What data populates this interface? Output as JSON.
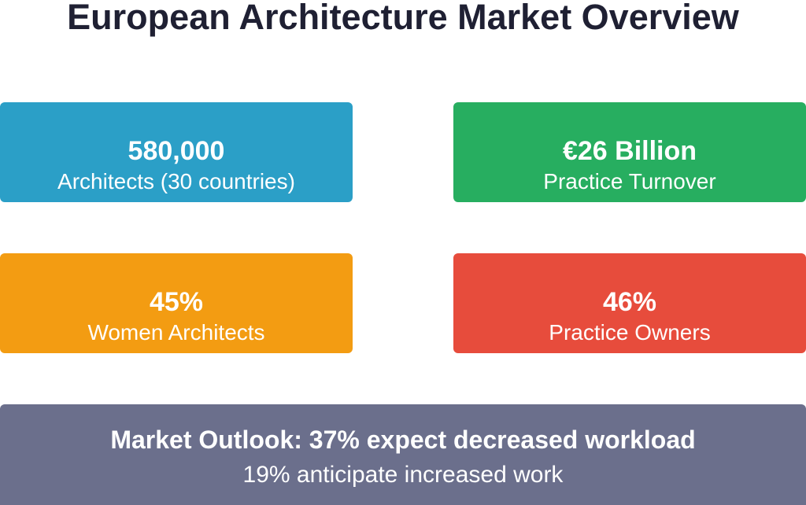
{
  "header": {
    "title": "European Architecture Market Overview"
  },
  "cards": [
    {
      "value": "580,000",
      "label": "Architects (30 countries)"
    },
    {
      "value": "€26 Billion",
      "label": "Practice Turnover"
    },
    {
      "value": "45%",
      "label": "Women Architects"
    },
    {
      "value": "46%",
      "label": "Practice Owners"
    }
  ],
  "outlook": {
    "headline": "Market Outlook: 37% expect decreased workload",
    "subline": "19% anticipate increased work"
  }
}
